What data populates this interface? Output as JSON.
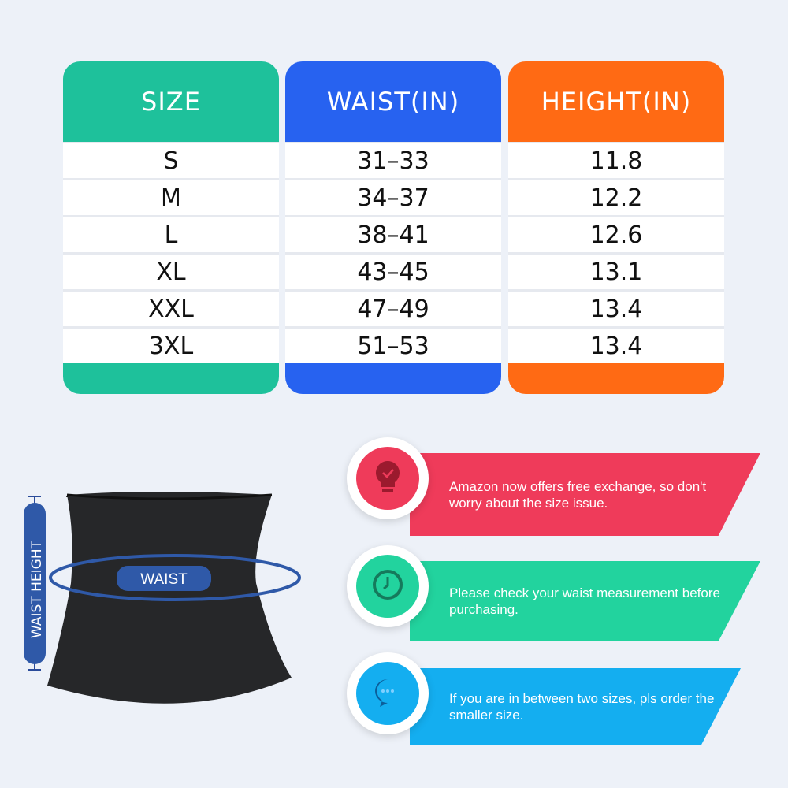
{
  "table": {
    "columns": [
      {
        "header": "SIZE",
        "color": "#1ec19b",
        "values": [
          "S",
          "M",
          "L",
          "XL",
          "XXL",
          "3XL"
        ]
      },
      {
        "header": "WAIST(IN)",
        "color": "#2762f0",
        "values": [
          "31–33",
          "34–37",
          "38–41",
          "43–45",
          "47–49",
          "51–53"
        ]
      },
      {
        "header": "HEIGHT(IN)",
        "color": "#ff6a14",
        "values": [
          "11.8",
          "12.2",
          "12.6",
          "13.1",
          "13.4",
          "13.4"
        ]
      }
    ]
  },
  "diagram": {
    "waist_label": "WAIST",
    "height_label": "WAIST HEIGHT"
  },
  "tips": [
    {
      "icon": "lightbulb-icon",
      "color": "#ef3b5a",
      "text": "Amazon now offers free exchange, so don't worry about the size issue."
    },
    {
      "icon": "clock-icon",
      "color": "#22d39e",
      "text": "Please check your waist measurement before purchasing."
    },
    {
      "icon": "chat-bubble-icon",
      "color": "#14aef0",
      "text": "If you are in between two sizes, pls order the smaller size."
    }
  ]
}
